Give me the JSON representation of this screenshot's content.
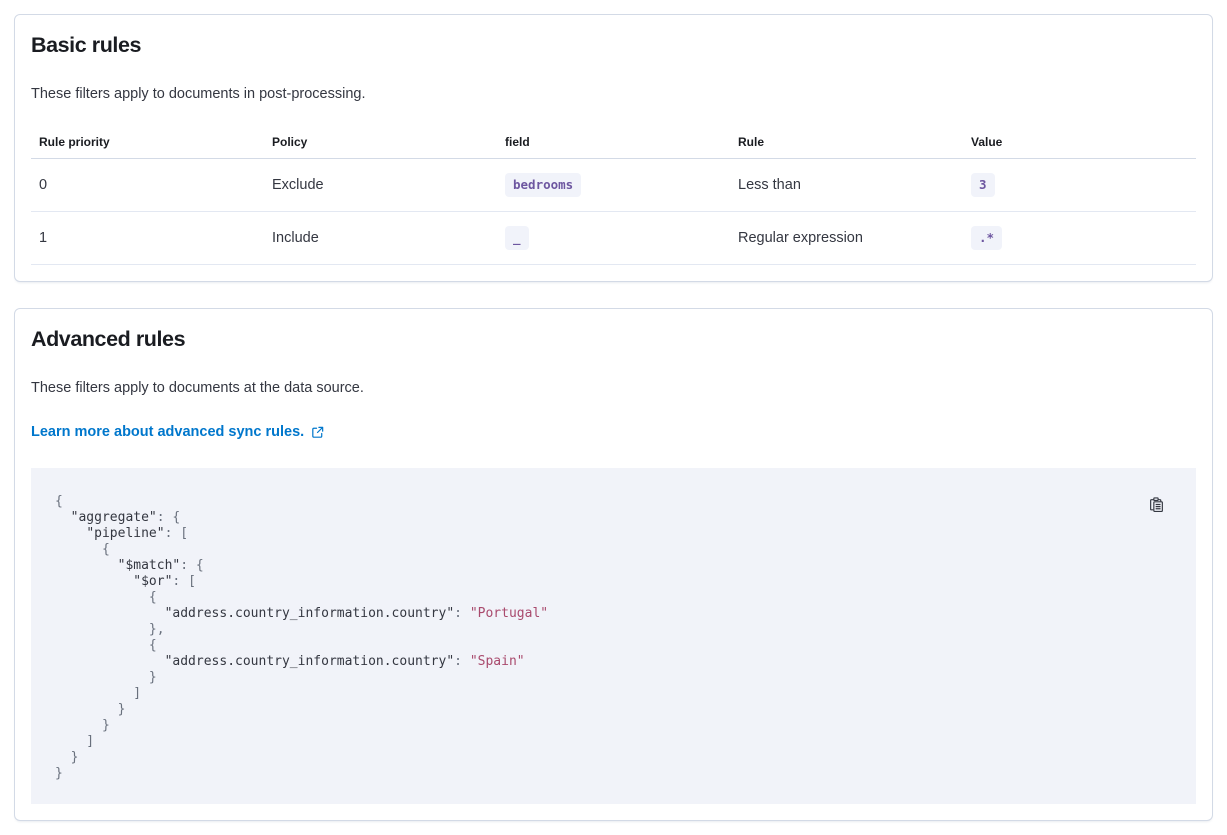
{
  "colors": {
    "heading": "#1a1c21",
    "text": "#343741",
    "panel-border": "#d3dae6",
    "table-border": "#d3dae6",
    "row-border": "#e3e8f2",
    "badge-bg": "#f1f3fa",
    "code-purple": "#6d56a0",
    "link-blue": "#0077cc",
    "code-bg": "#f1f3f9",
    "code-key": "#343741",
    "code-string": "#a94a6d",
    "code-punct": "#69707d"
  },
  "basic_rules": {
    "title": "Basic rules",
    "description": "These filters apply to documents in post-processing.",
    "table": {
      "headers": [
        "Rule priority",
        "Policy",
        "field",
        "Rule",
        "Value"
      ],
      "rows": [
        {
          "priority": "0",
          "policy": "Exclude",
          "field": "bedrooms",
          "rule": "Less than",
          "value": "3"
        },
        {
          "priority": "1",
          "policy": "Include",
          "field": "_",
          "rule": "Regular expression",
          "value": ".*"
        }
      ]
    }
  },
  "advanced_rules": {
    "title": "Advanced rules",
    "description": "These filters apply to documents at the data source.",
    "link_label": "Learn more about advanced sync rules.",
    "icons": {
      "popout": "external-link-icon",
      "copy": "copy-clipboard-icon"
    },
    "code_lines": [
      "{",
      "  \"aggregate\": {",
      "    \"pipeline\": [",
      "      {",
      "        \"$match\": {",
      "          \"$or\": [",
      "            {",
      "              \"address.country_information.country\": \"Portugal\"",
      "            },",
      "            {",
      "              \"address.country_information.country\": \"Spain\"",
      "            }",
      "          ]",
      "        }",
      "      }",
      "    ]",
      "  }",
      "}"
    ]
  }
}
